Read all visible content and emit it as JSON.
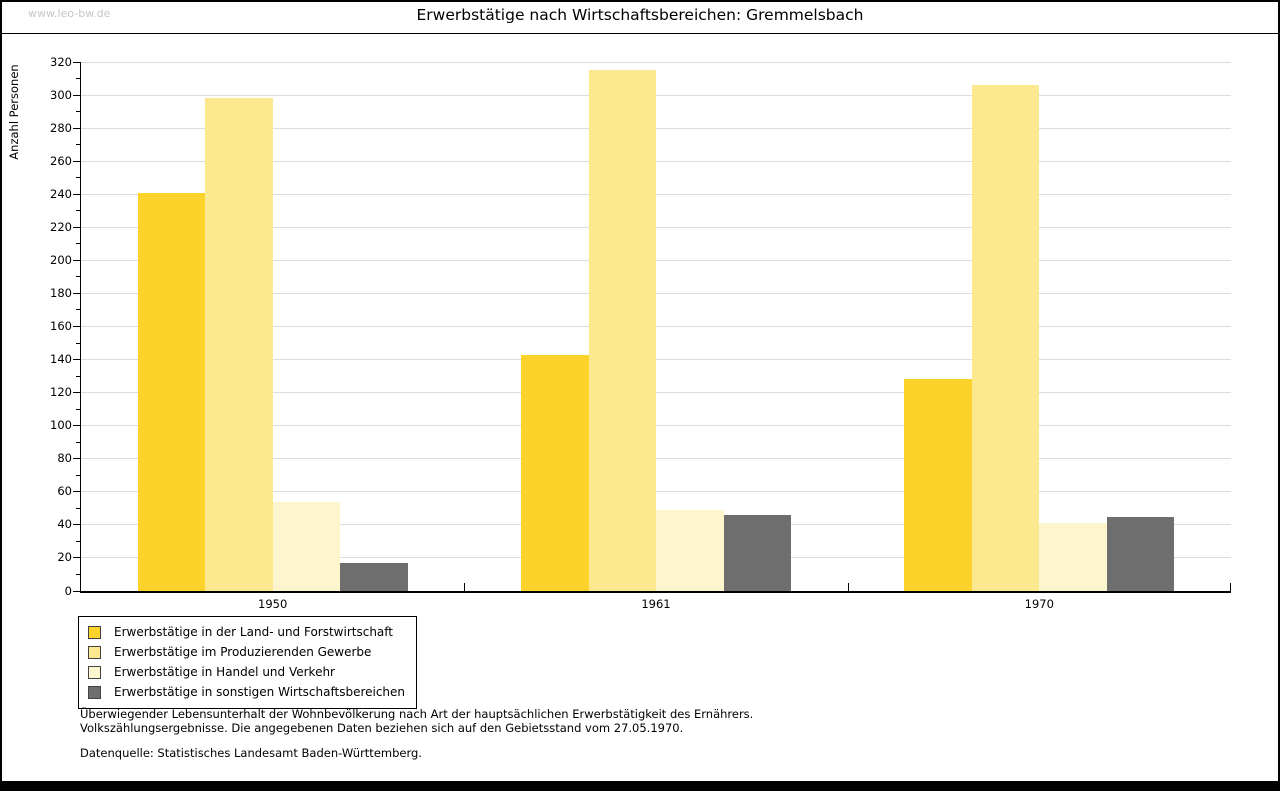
{
  "watermark": "www.leo-bw.de",
  "title": "Erwerbstätige nach Wirtschaftsbereichen: Gremmelsbach",
  "chart_data": {
    "type": "bar",
    "title": "Erwerbstätige nach Wirtschaftsbereichen: Gremmelsbach",
    "xlabel": "",
    "ylabel": "Anzahl Personen",
    "categories": [
      "1950",
      "1961",
      "1970"
    ],
    "series": [
      {
        "name": "Erwerbstätige in der Land- und Forstwirtschaft",
        "color": "#FCD32B",
        "values": [
          241,
          143,
          128
        ]
      },
      {
        "name": "Erwerbstätige im Produzierenden Gewerbe",
        "color": "#FCE88E",
        "values": [
          298,
          315,
          306
        ]
      },
      {
        "name": "Erwerbstätige in Handel und Verkehr",
        "color": "#FCF5CD",
        "values": [
          54,
          49,
          41
        ]
      },
      {
        "name": "Erwerbstätige in sonstigen Wirtschaftsbereichen",
        "color": "#6E6E6E",
        "values": [
          17,
          46,
          45
        ]
      }
    ],
    "ylim": [
      0,
      320
    ],
    "ytick_step": 20,
    "yminor_step": 10,
    "grid": true,
    "gridline_color": "#dcdcdc",
    "legend_position": "bottom-left"
  },
  "footnotes": {
    "line1": "Überwiegender Lebensunterhalt der Wohnbevölkerung nach Art der hauptsächlichen Erwerbstätigkeit des Ernährers.",
    "line2": "Volkszählungsergebnisse. Die angegebenen Daten beziehen sich auf den Gebietsstand vom 27.05.1970.",
    "source": "Datenquelle: Statistisches Landesamt Baden-Württemberg."
  }
}
